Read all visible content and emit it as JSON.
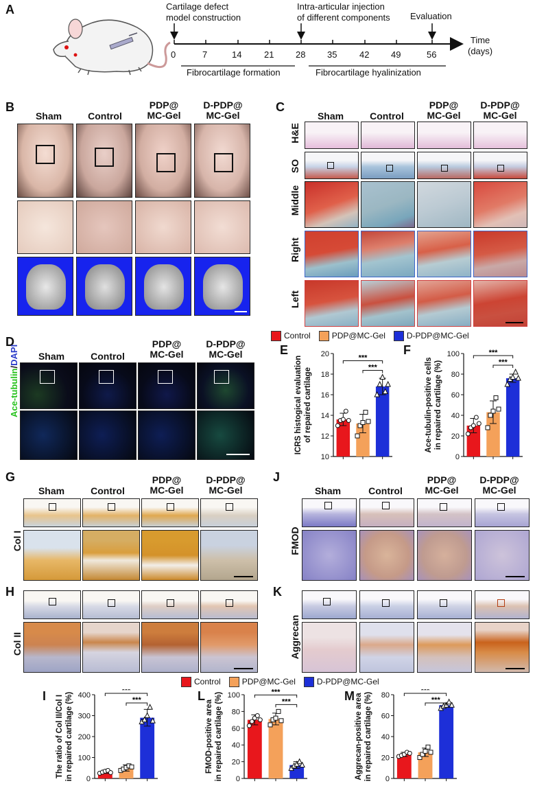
{
  "panels": {
    "A": "A",
    "B": "B",
    "C": "C",
    "D": "D",
    "E": "E",
    "F": "F",
    "G": "G",
    "H": "H",
    "I": "I",
    "J": "J",
    "K": "K",
    "L": "L",
    "M": "M"
  },
  "timeline": {
    "event1_line1": "Cartilage defect",
    "event1_line2": "model construction",
    "event2_line1": "Intra-articular injection",
    "event2_line2": "of different components",
    "event3": "Evaluation",
    "ticks": [
      "0",
      "7",
      "14",
      "21",
      "28",
      "35",
      "42",
      "49",
      "56"
    ],
    "axis_line1": "Time",
    "axis_line2": "(days)",
    "phase1": "Fibrocartilage formation",
    "phase2": "Fibrocartilage hyalinization"
  },
  "groups": {
    "sham": "Sham",
    "control": "Control",
    "pdp_l1": "PDP@",
    "pdp_l2": "MC-Gel",
    "dpdp_l1": "D-PDP@",
    "dpdp_l2": "MC-Gel"
  },
  "rows_C": {
    "he": "H&E",
    "so": "SO",
    "middle": "Middle",
    "right": "Right",
    "left": "Left"
  },
  "row_D": {
    "ace": "Ace-tubulin",
    "slash": "/",
    "dapi": "DAPI"
  },
  "row_G": "Col I",
  "row_H": "Col II",
  "row_J": "FMOD",
  "row_K": "Aggrecan",
  "legend": {
    "control": "Control",
    "pdp": "PDP@MC-Gel",
    "dpdp": "D-PDP@MC-Gel"
  },
  "colors": {
    "control": "#e8171c",
    "pdp": "#f4a15a",
    "dpdp": "#1d2fd8"
  },
  "significance": "***",
  "chart_data": [
    {
      "panel": "E",
      "type": "bar",
      "ylabel_line1": "ICRS histogical evaluation",
      "ylabel_line2": "of repaired cartilage",
      "ylim": [
        10,
        20
      ],
      "yticks": [
        "10",
        "12",
        "14",
        "16",
        "18",
        "20"
      ],
      "series": [
        {
          "name": "Control",
          "value": 13.6,
          "error": 0.6,
          "points": [
            13.0,
            13.5,
            13.6,
            14.4,
            13.5
          ]
        },
        {
          "name": "PDP@MC-Gel",
          "value": 13.2,
          "error": 0.9,
          "points": [
            12.0,
            13.0,
            13.3,
            14.3,
            13.4
          ]
        },
        {
          "name": "D-PDP@MC-Gel",
          "value": 16.8,
          "error": 0.8,
          "points": [
            16.0,
            17.0,
            17.7,
            16.3,
            17.0
          ]
        }
      ]
    },
    {
      "panel": "F",
      "type": "bar",
      "ylabel_line1": "Ace-tubulin-positive cells",
      "ylabel_line2": "in repaired cartilage (%)",
      "ylim": [
        0,
        100
      ],
      "yticks": [
        "0",
        "20",
        "40",
        "60",
        "80",
        "100"
      ],
      "series": [
        {
          "name": "Control",
          "value": 30,
          "error": 7,
          "points": [
            22,
            28,
            30,
            38,
            32
          ]
        },
        {
          "name": "PDP@MC-Gel",
          "value": 43,
          "error": 11,
          "points": [
            28,
            40,
            44,
            57,
            46
          ]
        },
        {
          "name": "D-PDP@MC-Gel",
          "value": 76,
          "error": 4,
          "points": [
            70,
            75,
            77,
            82,
            76
          ]
        }
      ]
    },
    {
      "panel": "I",
      "type": "bar",
      "ylabel_line1": "The ratio of Col II/Col I",
      "ylabel_line2": "in repaired cartilage (%)",
      "ylim": [
        0,
        400
      ],
      "yticks": [
        "0",
        "100",
        "200",
        "300",
        "400"
      ],
      "series": [
        {
          "name": "Control",
          "value": 32,
          "error": 8,
          "points": [
            25,
            30,
            35,
            38,
            28
          ]
        },
        {
          "name": "PDP@MC-Gel",
          "value": 50,
          "error": 15,
          "points": [
            38,
            45,
            52,
            60,
            55
          ]
        },
        {
          "name": "D-PDP@MC-Gel",
          "value": 290,
          "error": 40,
          "points": [
            270,
            280,
            300,
            340,
            275
          ]
        }
      ]
    },
    {
      "panel": "L",
      "type": "bar",
      "ylabel_line1": "FMOD-positive area",
      "ylabel_line2": "in repaired cartilage (%)",
      "ylim": [
        0,
        100
      ],
      "yticks": [
        "0",
        "20",
        "40",
        "60",
        "80",
        "100"
      ],
      "series": [
        {
          "name": "Control",
          "value": 70,
          "error": 6,
          "points": [
            63,
            68,
            72,
            75,
            70
          ]
        },
        {
          "name": "PDP@MC-Gel",
          "value": 71,
          "error": 7,
          "points": [
            64,
            70,
            72,
            80,
            69
          ]
        },
        {
          "name": "D-PDP@MC-Gel",
          "value": 16,
          "error": 4,
          "points": [
            12,
            15,
            17,
            20,
            16
          ]
        }
      ]
    },
    {
      "panel": "M",
      "type": "bar",
      "ylabel_line1": "Aggrecan-positive area",
      "ylabel_line2": "in repaired cartilage (%)",
      "ylim": [
        0,
        80
      ],
      "yticks": [
        "0",
        "20",
        "40",
        "60",
        "80"
      ],
      "series": [
        {
          "name": "Control",
          "value": 23,
          "error": 2,
          "points": [
            21,
            22,
            23,
            25,
            24
          ]
        },
        {
          "name": "PDP@MC-Gel",
          "value": 25,
          "error": 4,
          "points": [
            20,
            23,
            26,
            30,
            25
          ]
        },
        {
          "name": "D-PDP@MC-Gel",
          "value": 70,
          "error": 2,
          "points": [
            67,
            69,
            70,
            73,
            70
          ]
        }
      ]
    }
  ]
}
